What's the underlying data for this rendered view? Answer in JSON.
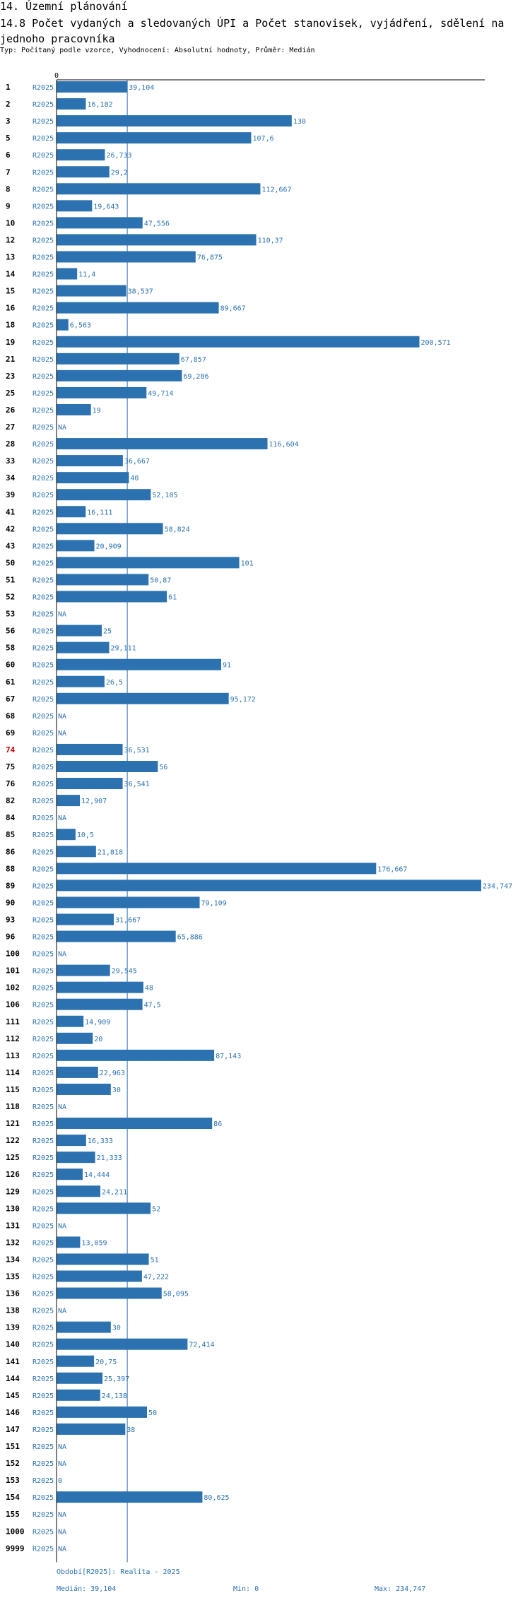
{
  "header": {
    "section": "14. Územní plánování",
    "title": "14.8 Počet vydaných a sledovaných ÚPI a Počet stanovisek, vyjádření, sdělení na jednoho pracovníka",
    "subtitle": "Typ: Počítaný podle vzorce, Vyhodnocení: Absolutní hodnoty, Průměr: Medián"
  },
  "colors": {
    "bar": "#2c72b0",
    "label": "#2c72b0",
    "highlight": "#cc0000",
    "axis": "#000000"
  },
  "chart_data": {
    "type": "bar",
    "orientation": "horizontal",
    "series_name": "R2025",
    "axis_zero_label": "0",
    "xlim": [
      0,
      234.747
    ],
    "median": 39.104,
    "highlight_id": "74",
    "rows": [
      {
        "id": "1",
        "series": "R2025",
        "value": 39.104,
        "label": "39,104"
      },
      {
        "id": "2",
        "series": "R2025",
        "value": 16.182,
        "label": "16,182"
      },
      {
        "id": "3",
        "series": "R2025",
        "value": 130,
        "label": "130"
      },
      {
        "id": "5",
        "series": "R2025",
        "value": 107.6,
        "label": "107,6"
      },
      {
        "id": "6",
        "series": "R2025",
        "value": 26.733,
        "label": "26,733"
      },
      {
        "id": "7",
        "series": "R2025",
        "value": 29.2,
        "label": "29,2"
      },
      {
        "id": "8",
        "series": "R2025",
        "value": 112.667,
        "label": "112,667"
      },
      {
        "id": "9",
        "series": "R2025",
        "value": 19.643,
        "label": "19,643"
      },
      {
        "id": "10",
        "series": "R2025",
        "value": 47.556,
        "label": "47,556"
      },
      {
        "id": "12",
        "series": "R2025",
        "value": 110.37,
        "label": "110,37"
      },
      {
        "id": "13",
        "series": "R2025",
        "value": 76.875,
        "label": "76,875"
      },
      {
        "id": "14",
        "series": "R2025",
        "value": 11.4,
        "label": "11,4"
      },
      {
        "id": "15",
        "series": "R2025",
        "value": 38.537,
        "label": "38,537"
      },
      {
        "id": "16",
        "series": "R2025",
        "value": 89.667,
        "label": "89,667"
      },
      {
        "id": "18",
        "series": "R2025",
        "value": 6.563,
        "label": "6,563"
      },
      {
        "id": "19",
        "series": "R2025",
        "value": 200.571,
        "label": "200,571"
      },
      {
        "id": "21",
        "series": "R2025",
        "value": 67.857,
        "label": "67,857"
      },
      {
        "id": "23",
        "series": "R2025",
        "value": 69.286,
        "label": "69,286"
      },
      {
        "id": "25",
        "series": "R2025",
        "value": 49.714,
        "label": "49,714"
      },
      {
        "id": "26",
        "series": "R2025",
        "value": 19,
        "label": "19"
      },
      {
        "id": "27",
        "series": "R2025",
        "value": null,
        "label": "NA"
      },
      {
        "id": "28",
        "series": "R2025",
        "value": 116.604,
        "label": "116,604"
      },
      {
        "id": "33",
        "series": "R2025",
        "value": 36.667,
        "label": "36,667"
      },
      {
        "id": "34",
        "series": "R2025",
        "value": 40,
        "label": "40"
      },
      {
        "id": "39",
        "series": "R2025",
        "value": 52.105,
        "label": "52,105"
      },
      {
        "id": "41",
        "series": "R2025",
        "value": 16.111,
        "label": "16,111"
      },
      {
        "id": "42",
        "series": "R2025",
        "value": 58.824,
        "label": "58,824"
      },
      {
        "id": "43",
        "series": "R2025",
        "value": 20.909,
        "label": "20,909"
      },
      {
        "id": "50",
        "series": "R2025",
        "value": 101,
        "label": "101"
      },
      {
        "id": "51",
        "series": "R2025",
        "value": 50.87,
        "label": "50,87"
      },
      {
        "id": "52",
        "series": "R2025",
        "value": 61,
        "label": "61"
      },
      {
        "id": "53",
        "series": "R2025",
        "value": null,
        "label": "NA"
      },
      {
        "id": "56",
        "series": "R2025",
        "value": 25,
        "label": "25"
      },
      {
        "id": "58",
        "series": "R2025",
        "value": 29.111,
        "label": "29,111"
      },
      {
        "id": "60",
        "series": "R2025",
        "value": 91,
        "label": "91"
      },
      {
        "id": "61",
        "series": "R2025",
        "value": 26.5,
        "label": "26,5"
      },
      {
        "id": "67",
        "series": "R2025",
        "value": 95.172,
        "label": "95,172"
      },
      {
        "id": "68",
        "series": "R2025",
        "value": null,
        "label": "NA"
      },
      {
        "id": "69",
        "series": "R2025",
        "value": null,
        "label": "NA"
      },
      {
        "id": "74",
        "series": "R2025",
        "value": 36.531,
        "label": "36,531"
      },
      {
        "id": "75",
        "series": "R2025",
        "value": 56,
        "label": "56"
      },
      {
        "id": "76",
        "series": "R2025",
        "value": 36.541,
        "label": "36,541"
      },
      {
        "id": "82",
        "series": "R2025",
        "value": 12.907,
        "label": "12,907"
      },
      {
        "id": "84",
        "series": "R2025",
        "value": null,
        "label": "NA"
      },
      {
        "id": "85",
        "series": "R2025",
        "value": 10.5,
        "label": "10,5"
      },
      {
        "id": "86",
        "series": "R2025",
        "value": 21.818,
        "label": "21,818"
      },
      {
        "id": "88",
        "series": "R2025",
        "value": 176.667,
        "label": "176,667"
      },
      {
        "id": "89",
        "series": "R2025",
        "value": 234.747,
        "label": "234,747"
      },
      {
        "id": "90",
        "series": "R2025",
        "value": 79.109,
        "label": "79,109"
      },
      {
        "id": "93",
        "series": "R2025",
        "value": 31.667,
        "label": "31,667"
      },
      {
        "id": "96",
        "series": "R2025",
        "value": 65.886,
        "label": "65,886"
      },
      {
        "id": "100",
        "series": "R2025",
        "value": null,
        "label": "NA"
      },
      {
        "id": "101",
        "series": "R2025",
        "value": 29.545,
        "label": "29,545"
      },
      {
        "id": "102",
        "series": "R2025",
        "value": 48,
        "label": "48"
      },
      {
        "id": "106",
        "series": "R2025",
        "value": 47.5,
        "label": "47,5"
      },
      {
        "id": "111",
        "series": "R2025",
        "value": 14.909,
        "label": "14,909"
      },
      {
        "id": "112",
        "series": "R2025",
        "value": 20,
        "label": "20"
      },
      {
        "id": "113",
        "series": "R2025",
        "value": 87.143,
        "label": "87,143"
      },
      {
        "id": "114",
        "series": "R2025",
        "value": 22.963,
        "label": "22,963"
      },
      {
        "id": "115",
        "series": "R2025",
        "value": 30,
        "label": "30"
      },
      {
        "id": "118",
        "series": "R2025",
        "value": null,
        "label": "NA"
      },
      {
        "id": "121",
        "series": "R2025",
        "value": 86,
        "label": "86"
      },
      {
        "id": "122",
        "series": "R2025",
        "value": 16.333,
        "label": "16,333"
      },
      {
        "id": "125",
        "series": "R2025",
        "value": 21.333,
        "label": "21,333"
      },
      {
        "id": "126",
        "series": "R2025",
        "value": 14.444,
        "label": "14,444"
      },
      {
        "id": "129",
        "series": "R2025",
        "value": 24.211,
        "label": "24,211"
      },
      {
        "id": "130",
        "series": "R2025",
        "value": 52,
        "label": "52"
      },
      {
        "id": "131",
        "series": "R2025",
        "value": null,
        "label": "NA"
      },
      {
        "id": "132",
        "series": "R2025",
        "value": 13.059,
        "label": "13,059"
      },
      {
        "id": "134",
        "series": "R2025",
        "value": 51,
        "label": "51"
      },
      {
        "id": "135",
        "series": "R2025",
        "value": 47.222,
        "label": "47,222"
      },
      {
        "id": "136",
        "series": "R2025",
        "value": 58.095,
        "label": "58,095"
      },
      {
        "id": "138",
        "series": "R2025",
        "value": null,
        "label": "NA"
      },
      {
        "id": "139",
        "series": "R2025",
        "value": 30,
        "label": "30"
      },
      {
        "id": "140",
        "series": "R2025",
        "value": 72.414,
        "label": "72,414"
      },
      {
        "id": "141",
        "series": "R2025",
        "value": 20.75,
        "label": "20,75"
      },
      {
        "id": "144",
        "series": "R2025",
        "value": 25.397,
        "label": "25,397"
      },
      {
        "id": "145",
        "series": "R2025",
        "value": 24.138,
        "label": "24,138"
      },
      {
        "id": "146",
        "series": "R2025",
        "value": 50,
        "label": "50"
      },
      {
        "id": "147",
        "series": "R2025",
        "value": 38,
        "label": "38"
      },
      {
        "id": "151",
        "series": "R2025",
        "value": null,
        "label": "NA"
      },
      {
        "id": "152",
        "series": "R2025",
        "value": null,
        "label": "NA"
      },
      {
        "id": "153",
        "series": "R2025",
        "value": 0,
        "label": "0"
      },
      {
        "id": "154",
        "series": "R2025",
        "value": 80.625,
        "label": "80,625"
      },
      {
        "id": "155",
        "series": "R2025",
        "value": null,
        "label": "NA"
      },
      {
        "id": "1000",
        "series": "R2025",
        "value": null,
        "label": "NA"
      },
      {
        "id": "9999",
        "series": "R2025",
        "value": null,
        "label": "NA"
      }
    ]
  },
  "footer": {
    "period": "Období[R2025]: Realita - 2025",
    "median": "Medián: 39,104",
    "min": "Min: 0",
    "max": "Max: 234,747"
  }
}
